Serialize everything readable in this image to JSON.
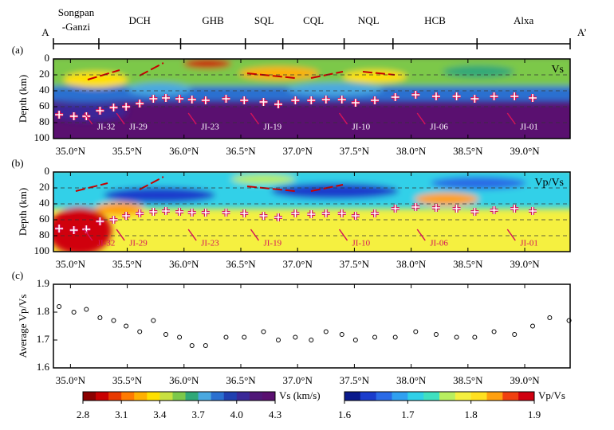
{
  "profile": {
    "start": "A",
    "end": "A’",
    "terranes": [
      [
        "Songpan",
        "-Ganzi"
      ],
      [
        "DCH"
      ],
      [
        "GHB"
      ],
      [
        "SQL"
      ],
      [
        "CQL"
      ],
      [
        "NQL"
      ],
      [
        "HCB"
      ],
      [
        "Alxa"
      ]
    ],
    "boundaries": [
      34.85,
      35.25,
      35.97,
      36.54,
      36.87,
      37.41,
      37.84,
      38.58,
      39.4
    ]
  },
  "chart_data": [
    {
      "type": "tomogram",
      "label": "(a)",
      "inset_label": "Vs",
      "ylabel": "Depth (km)",
      "xlim": [
        34.85,
        39.4
      ],
      "xticks": [
        {
          "value": 35.0,
          "label": "35.0°N"
        },
        {
          "value": 35.5,
          "label": "35.5°N"
        },
        {
          "value": 36.0,
          "label": "36.0°N"
        },
        {
          "value": 36.5,
          "label": "36.5°N"
        },
        {
          "value": 37.0,
          "label": "37.0°N"
        },
        {
          "value": 37.5,
          "label": "37.5°N"
        },
        {
          "value": 38.0,
          "label": "38.0°N"
        },
        {
          "value": 38.5,
          "label": "38.5°N"
        },
        {
          "value": 39.0,
          "label": "39.0°N"
        }
      ],
      "ylim": [
        100,
        0
      ],
      "yticks": [
        0,
        20,
        40,
        60,
        80,
        100
      ],
      "grid": true,
      "moho_x": [
        34.9,
        35.03,
        35.14,
        35.26,
        35.38,
        35.49,
        35.61,
        35.73,
        35.84,
        35.96,
        36.07,
        36.19,
        36.37,
        36.53,
        36.7,
        36.83,
        36.98,
        37.12,
        37.25,
        37.39,
        37.51,
        37.68,
        37.86,
        38.04,
        38.22,
        38.4,
        38.56,
        38.73,
        38.91,
        39.07
      ],
      "moho_depth": [
        70,
        72,
        72,
        65,
        61,
        60,
        56,
        50,
        49,
        50,
        51,
        52,
        50,
        52,
        54,
        57,
        52,
        52,
        51,
        51,
        55,
        52,
        48,
        45,
        47,
        47,
        50,
        47,
        47,
        49
      ],
      "annotations": [
        "JI-32",
        "JI-29",
        "JI-23",
        "JI-19",
        "JI-10",
        "JI-06",
        "JI-01"
      ],
      "colorbar": {
        "label": "Vs (km/s)",
        "ticks": [
          2.8,
          3.1,
          3.4,
          3.7,
          {
            "value": 4,
            "label": "4.0"
          },
          4.3
        ],
        "range": [
          2.8,
          4.3
        ],
        "colors": [
          "#8b0000",
          "#c80000",
          "#e83a00",
          "#ff7a00",
          "#ffb000",
          "#ffe000",
          "#c8e040",
          "#7cc84a",
          "#30a878",
          "#4aa8e0",
          "#2a70d0",
          "#2040b0",
          "#3a2898",
          "#501878",
          "#5a1070"
        ]
      }
    },
    {
      "type": "tomogram",
      "label": "(b)",
      "inset_label": "Vp/Vs",
      "ylabel": "Depth (km)",
      "xlim": [
        34.85,
        39.4
      ],
      "xticks": [
        {
          "value": 35.0,
          "label": "35.0°N"
        },
        {
          "value": 35.5,
          "label": "35.5°N"
        },
        {
          "value": 36.0,
          "label": "36.0°N"
        },
        {
          "value": 36.5,
          "label": "36.5°N"
        },
        {
          "value": 37.0,
          "label": "37.0°N"
        },
        {
          "value": 37.5,
          "label": "37.5°N"
        },
        {
          "value": 38.0,
          "label": "38.0°N"
        },
        {
          "value": 38.5,
          "label": "38.5°N"
        },
        {
          "value": 39.0,
          "label": "39.0°N"
        }
      ],
      "ylim": [
        100,
        0
      ],
      "yticks": [
        0,
        20,
        40,
        60,
        80,
        100
      ],
      "grid": true,
      "moho_x": [
        34.9,
        35.03,
        35.14,
        35.26,
        35.38,
        35.49,
        35.61,
        35.73,
        35.84,
        35.96,
        36.07,
        36.19,
        36.37,
        36.53,
        36.7,
        36.83,
        36.98,
        37.12,
        37.25,
        37.39,
        37.51,
        37.68,
        37.86,
        38.04,
        38.22,
        38.4,
        38.56,
        38.73,
        38.91,
        39.07
      ],
      "moho_depth": [
        71,
        73,
        72,
        62,
        60,
        55,
        52,
        50,
        49,
        50,
        51,
        51,
        51,
        52,
        55,
        57,
        52,
        53,
        52,
        52,
        55,
        52,
        46,
        44,
        45,
        46,
        50,
        48,
        46,
        49
      ],
      "annotations": [
        "JI-32",
        "JI-29",
        "JI-23",
        "JI-19",
        "JI-10",
        "JI-06",
        "JI-01"
      ],
      "colorbar": {
        "label": "Vp/Vs",
        "ticks": [
          1.6,
          1.7,
          1.8,
          1.9
        ],
        "range": [
          1.6,
          1.9
        ],
        "colors": [
          "#0a1a8c",
          "#1a3ccc",
          "#2a6ae6",
          "#30a0f0",
          "#30d0e8",
          "#40e0c0",
          "#b8ef60",
          "#f5f040",
          "#ffe020",
          "#ffa010",
          "#f04010",
          "#d00010"
        ]
      }
    },
    {
      "type": "scatter",
      "label": "(c)",
      "ylabel": "Average Vp/Vs",
      "xlim": [
        34.85,
        39.4
      ],
      "xticks": [
        {
          "value": 35.0,
          "label": "35.0°N"
        },
        {
          "value": 35.5,
          "label": "35.5°N"
        },
        {
          "value": 36.0,
          "label": "36.0°N"
        },
        {
          "value": 36.5,
          "label": "36.5°N"
        },
        {
          "value": 37.0,
          "label": "37.0°N"
        },
        {
          "value": 37.5,
          "label": "37.5°N"
        },
        {
          "value": 38.0,
          "label": "38.0°N"
        },
        {
          "value": 38.5,
          "label": "38.5°N"
        },
        {
          "value": 39.0,
          "label": "39.0°N"
        }
      ],
      "ylim": [
        1.6,
        1.9
      ],
      "yticks": [
        1.6,
        1.7,
        1.8,
        1.9
      ],
      "grid": false,
      "x": [
        34.9,
        35.03,
        35.14,
        35.26,
        35.38,
        35.49,
        35.61,
        35.73,
        35.84,
        35.96,
        36.07,
        36.19,
        36.37,
        36.53,
        36.7,
        36.83,
        36.98,
        37.12,
        37.25,
        37.39,
        37.51,
        37.68,
        37.86,
        38.04,
        38.22,
        38.4,
        38.56,
        38.73,
        38.91,
        39.07,
        39.22,
        39.39
      ],
      "values": [
        1.82,
        1.8,
        1.81,
        1.78,
        1.77,
        1.75,
        1.73,
        1.77,
        1.72,
        1.71,
        1.68,
        1.68,
        1.71,
        1.71,
        1.73,
        1.7,
        1.71,
        1.7,
        1.73,
        1.72,
        1.7,
        1.71,
        1.71,
        1.73,
        1.72,
        1.71,
        1.71,
        1.73,
        1.72,
        1.75,
        1.78,
        1.77
      ]
    }
  ]
}
